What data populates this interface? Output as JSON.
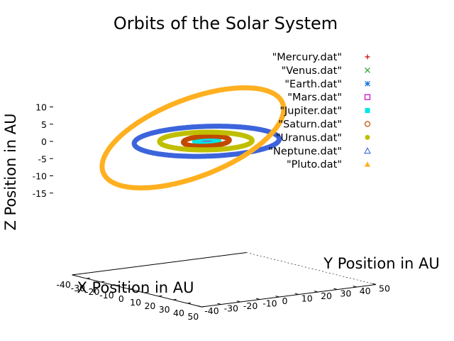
{
  "chart_data": {
    "type": "scatter",
    "title": "Orbits of the Solar System",
    "xlabel": "X Position in AU",
    "ylabel": "Y Position in AU",
    "zlabel": "Z Position in AU",
    "xlim": [
      -40,
      50
    ],
    "ylim": [
      -40,
      50
    ],
    "zlim": [
      -15,
      10
    ],
    "x_ticks": [
      "-40",
      "-30",
      "-20",
      "-10",
      "0",
      "10",
      "20",
      "30",
      "40",
      "50"
    ],
    "y_ticks": [
      "-40",
      "-30",
      "-20",
      "-10",
      "0",
      "10",
      "20",
      "30",
      "40",
      "50"
    ],
    "z_ticks": [
      "10",
      "5",
      "0",
      "-5",
      "-10",
      "-15"
    ],
    "legend_position": "top-right",
    "series": [
      {
        "name": "\"Mercury.dat\"",
        "marker": "plus",
        "color": "#cc0000",
        "semi_major_axis": 0.387,
        "eccentricity": 0.206,
        "inclination_deg": 7.0
      },
      {
        "name": "\"Venus.dat\"",
        "marker": "cross",
        "color": "#2ca02c",
        "semi_major_axis": 0.723,
        "eccentricity": 0.007,
        "inclination_deg": 3.4
      },
      {
        "name": "\"Earth.dat\"",
        "marker": "star",
        "color": "#1e78dc",
        "semi_major_axis": 1.0,
        "eccentricity": 0.017,
        "inclination_deg": 0.0
      },
      {
        "name": "\"Mars.dat\"",
        "marker": "open-square",
        "color": "#c800c8",
        "semi_major_axis": 1.524,
        "eccentricity": 0.093,
        "inclination_deg": 1.85
      },
      {
        "name": "\"Jupiter.dat\"",
        "marker": "filled-square",
        "color": "#00e6e6",
        "semi_major_axis": 5.2,
        "eccentricity": 0.049,
        "inclination_deg": 1.3
      },
      {
        "name": "\"Saturn.dat\"",
        "marker": "open-circle",
        "color": "#c04a00",
        "semi_major_axis": 9.54,
        "eccentricity": 0.056,
        "inclination_deg": 2.5
      },
      {
        "name": "\"Uranus.dat\"",
        "marker": "filled-circle",
        "color": "#bfbf00",
        "semi_major_axis": 19.2,
        "eccentricity": 0.046,
        "inclination_deg": 0.77
      },
      {
        "name": "\"Neptune.dat\"",
        "marker": "open-triangle",
        "color": "#3c64dc",
        "semi_major_axis": 30.06,
        "eccentricity": 0.01,
        "inclination_deg": 1.77
      },
      {
        "name": "\"Pluto.dat\"",
        "marker": "filled-triangle",
        "color": "#ffb020",
        "semi_major_axis": 39.5,
        "eccentricity": 0.25,
        "inclination_deg": 17.2
      }
    ]
  }
}
